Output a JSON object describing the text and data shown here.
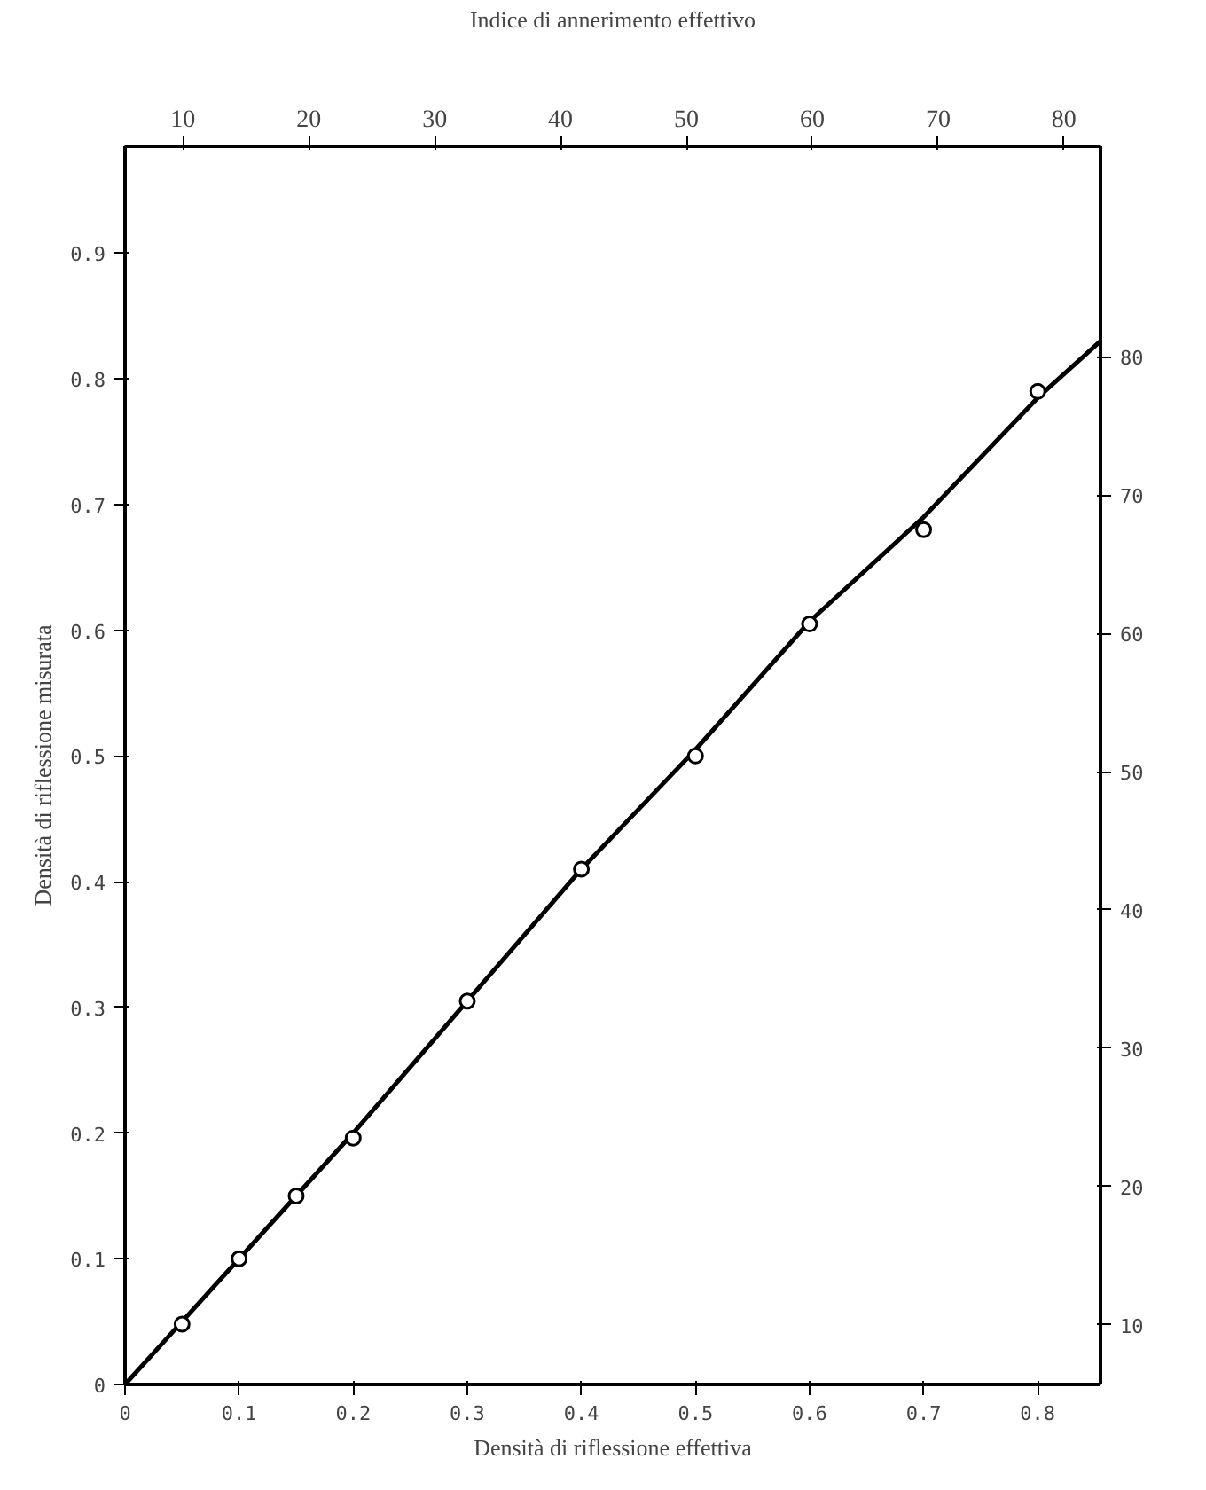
{
  "chart_data": {
    "type": "scatter",
    "xlabel": "Densità di riflessione effettiva",
    "ylabel": "Densità di riflessione misurata",
    "x2label": "Indice di annerimento effettivo",
    "xlim": [
      0,
      0.855
    ],
    "ylim": [
      0,
      0.985
    ],
    "x2lim": [
      5.4,
      82.9
    ],
    "y2lim": [
      5.7,
      95.2
    ],
    "xticks": [
      {
        "value": 0,
        "label": "0"
      },
      0.1,
      0.2,
      0.3,
      0.4,
      0.5,
      0.6,
      0.7,
      0.8
    ],
    "yticks": [
      {
        "value": 0,
        "label": "0"
      },
      0.1,
      0.2,
      0.3,
      0.4,
      0.5,
      0.6,
      0.7,
      0.8,
      0.9
    ],
    "x2ticks": [
      10,
      20,
      30,
      40,
      50,
      60,
      70,
      80
    ],
    "y2ticks": [
      10,
      20,
      30,
      40,
      50,
      60,
      70,
      80
    ],
    "grid": false,
    "series": [
      {
        "type": "line",
        "marker": "none",
        "color": "#000000",
        "x": [
          0,
          0.05,
          0.1,
          0.2,
          0.3,
          0.4,
          0.5,
          0.6,
          0.7,
          0.8,
          0.855
        ],
        "values": [
          0,
          0.05,
          0.1,
          0.2,
          0.305,
          0.41,
          0.505,
          0.607,
          0.69,
          0.785,
          0.83
        ]
      },
      {
        "marker": "circle",
        "color": "#000000",
        "x": [
          0.05,
          0.1,
          0.15,
          0.2,
          0.3,
          0.4,
          0.5,
          0.6,
          0.7,
          0.8
        ],
        "values": [
          0.048,
          0.1,
          0.15,
          0.196,
          0.305,
          0.41,
          0.5,
          0.605,
          0.68,
          0.79
        ]
      }
    ]
  }
}
